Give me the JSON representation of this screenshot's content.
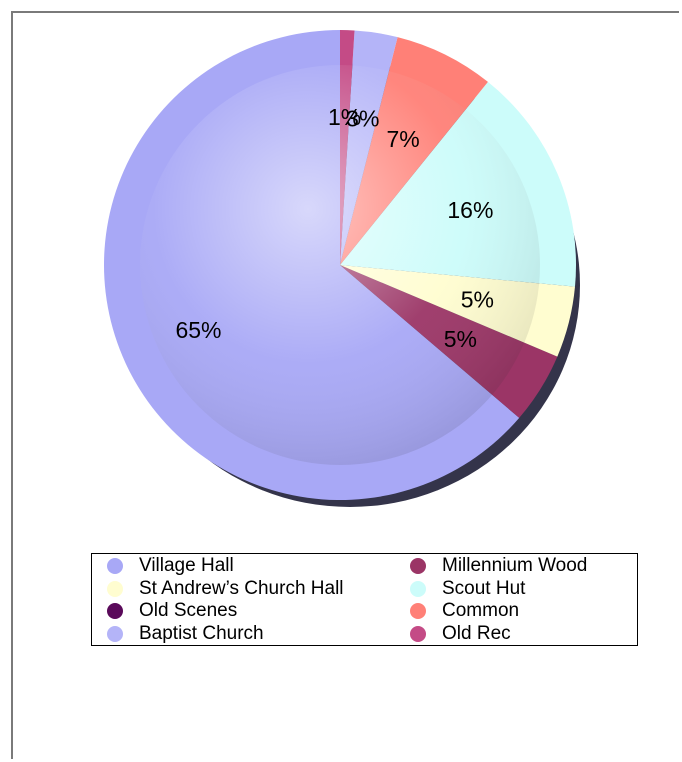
{
  "chart_data": {
    "type": "pie",
    "title": "",
    "slices": [
      {
        "label": "Village Hall",
        "value": 65,
        "value_label": "65%",
        "color": "#a8a8f6"
      },
      {
        "label": "Millennium Wood",
        "value": 5,
        "value_label": "5%",
        "color": "#9b3566"
      },
      {
        "label": "St Andrew’s Church Hall",
        "value": 5,
        "value_label": "5%",
        "color": "#fffdd0"
      },
      {
        "label": "Scout Hut",
        "value": 16,
        "value_label": "16%",
        "color": "#ccfcfa"
      },
      {
        "label": "Old Scenes",
        "value": 0,
        "value_label": "",
        "color": "#5a0a5a"
      },
      {
        "label": "Common",
        "value": 7,
        "value_label": "7%",
        "color": "#ff8077"
      },
      {
        "label": "Baptist Church",
        "value": 3,
        "value_label": "3%",
        "color": "#b4b4f8"
      },
      {
        "label": "Old Rec",
        "value": 1,
        "value_label": "1%",
        "color": "#c44b86"
      }
    ],
    "legend_position": "bottom"
  }
}
